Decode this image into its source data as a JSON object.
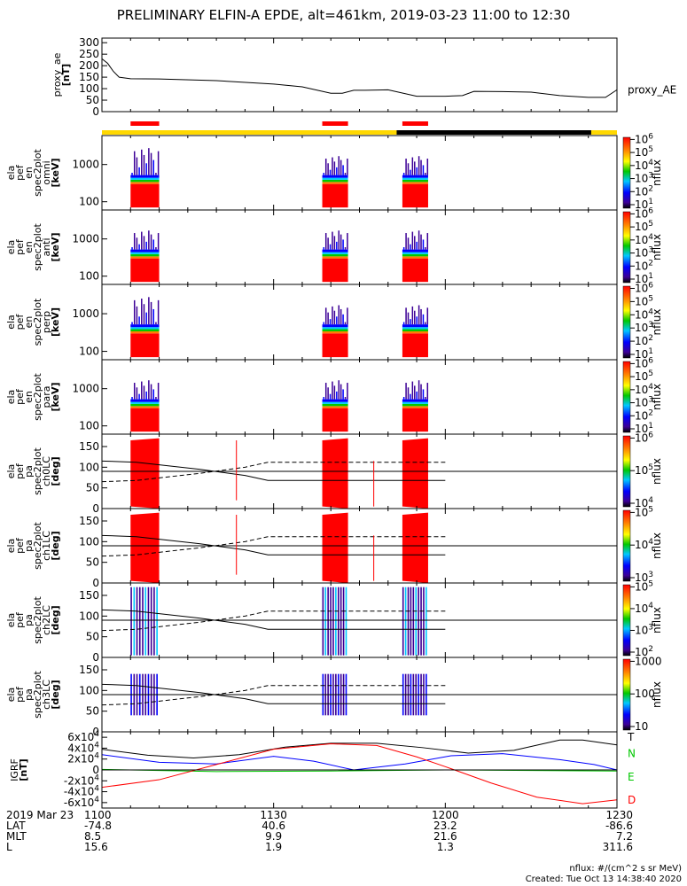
{
  "title": "PRELIMINARY ELFIN-A EPDE, alt=461km, 2019-03-23 11:00 to 12:30",
  "footer": {
    "units": "nflux: #/(cm^2 s sr MeV)",
    "created": "Created: Tue Oct 13 14:38:40 2020"
  },
  "colors": {
    "red": "#ff0000",
    "green": "#00c800",
    "blue": "#0000ff",
    "yellow": "#ffd800",
    "purple": "#3c0096",
    "cyan": "#00c8ff"
  },
  "chart_data": [
    {
      "type": "line",
      "panel": "proxy_ae",
      "ylabel": [
        "proxy_ae",
        "[nT]"
      ],
      "legend": "proxy_AE",
      "ylim": [
        0,
        320
      ],
      "yticks": [
        0,
        50,
        100,
        150,
        200,
        250,
        300
      ],
      "x_minutes": [
        0,
        1,
        2,
        3,
        5,
        10,
        20,
        30,
        35,
        40,
        42,
        44,
        46,
        50,
        55,
        60,
        63,
        65,
        70,
        75,
        80,
        85,
        88,
        90
      ],
      "values": [
        230,
        210,
        175,
        150,
        143,
        142,
        135,
        120,
        108,
        80,
        80,
        93,
        93,
        95,
        67,
        67,
        70,
        88,
        87,
        85,
        70,
        62,
        62,
        95
      ]
    },
    {
      "type": "bar",
      "panel": "status bars",
      "science_zones_min": [
        [
          5,
          10
        ],
        [
          38.5,
          43
        ],
        [
          52.5,
          57
        ]
      ],
      "track": [
        {
          "from": 0,
          "to": 51.5,
          "color": "yellow"
        },
        {
          "from": 51.5,
          "to": 85.5,
          "color": "black"
        },
        {
          "from": 85.5,
          "to": 90,
          "color": "yellow"
        }
      ]
    },
    {
      "type": "heatmap",
      "panel": "ela_pef_en_spec2plot_omni",
      "ylabel": [
        "ela",
        "pef",
        "en",
        "spec2plot",
        "omni",
        "[keV]"
      ],
      "yscale": "log",
      "ylim": [
        60,
        6000
      ],
      "yticks": [
        100,
        1000
      ],
      "zlabel": "nflux",
      "zticks": [
        "10^1",
        "10^2",
        "10^3",
        "10^4",
        "10^5",
        "10^6"
      ]
    },
    {
      "type": "heatmap",
      "panel": "ela_pef_en_spec2plot_anti",
      "ylabel": [
        "ela",
        "pef",
        "en",
        "spec2plot",
        "anti",
        "[keV]"
      ],
      "yscale": "log",
      "ylim": [
        60,
        6000
      ],
      "yticks": [
        100,
        1000
      ],
      "zlabel": "nflux",
      "zticks": [
        "10^1",
        "10^2",
        "10^3",
        "10^4",
        "10^5",
        "10^6"
      ]
    },
    {
      "type": "heatmap",
      "panel": "ela_pef_en_spec2plot_perp",
      "ylabel": [
        "ela",
        "pef",
        "en",
        "spec2plot",
        "perp",
        "[keV]"
      ],
      "yscale": "log",
      "ylim": [
        60,
        6000
      ],
      "yticks": [
        100,
        1000
      ],
      "zlabel": "nflux",
      "zticks": [
        "10^1",
        "10^2",
        "10^3",
        "10^4",
        "10^5",
        "10^6"
      ]
    },
    {
      "type": "heatmap",
      "panel": "ela_pef_en_spec2plot_para",
      "ylabel": [
        "ela",
        "pef",
        "en",
        "spec2plot",
        "para",
        "[keV]"
      ],
      "yscale": "log",
      "ylim": [
        60,
        6000
      ],
      "yticks": [
        100,
        1000
      ],
      "zlabel": "nflux",
      "zticks": [
        "10^1",
        "10^2",
        "10^3",
        "10^4",
        "10^5",
        "10^6"
      ]
    },
    {
      "type": "heatmap",
      "panel": "ela_pef_pa_spec2plot_ch0LC",
      "ylabel": [
        "ela",
        "pef",
        "pa",
        "spec2plot",
        "ch0LC",
        "[deg]"
      ],
      "ylim": [
        0,
        180
      ],
      "yticks": [
        0,
        50,
        100,
        150
      ],
      "zlabel": "nflux",
      "zticks": [
        "10^4",
        "10^5",
        "10^6"
      ]
    },
    {
      "type": "heatmap",
      "panel": "ela_pef_pa_spec2plot_ch1LC",
      "ylabel": [
        "ela",
        "pef",
        "pa",
        "spec2plot",
        "ch1LC",
        "[deg]"
      ],
      "ylim": [
        0,
        180
      ],
      "yticks": [
        0,
        50,
        100,
        150
      ],
      "zlabel": "nflux",
      "zticks": [
        "10^3",
        "10^4",
        "10^5"
      ]
    },
    {
      "type": "heatmap",
      "panel": "ela_pef_pa_spec2plot_ch2LC",
      "ylabel": [
        "ela",
        "pef",
        "pa",
        "spec2plot",
        "ch2LC",
        "[deg]"
      ],
      "ylim": [
        0,
        180
      ],
      "yticks": [
        0,
        50,
        100,
        150
      ],
      "zlabel": "nflux",
      "zticks": [
        "10^2",
        "10^3",
        "10^4",
        "10^5"
      ]
    },
    {
      "type": "heatmap",
      "panel": "ela_pef_pa_spec2plot_ch3LC",
      "ylabel": [
        "ela",
        "pef",
        "pa",
        "spec2plot",
        "ch3LC",
        "[deg]"
      ],
      "ylim": [
        0,
        180
      ],
      "yticks": [
        0,
        50,
        100,
        150
      ],
      "zlabel": "nflux",
      "zticks": [
        "10",
        "100",
        "1000"
      ]
    },
    {
      "type": "line",
      "panel": "IGRF",
      "ylabel": [
        "IGRF",
        "[nT]"
      ],
      "ylim": [
        -70000,
        70000
      ],
      "yticks": [
        "-6x10^4",
        "-4x10^4",
        "-2x10^4",
        "0",
        "2x10^4",
        "4x10^4",
        "6x10^4"
      ],
      "ytick_values": [
        -60000,
        -40000,
        -20000,
        0,
        20000,
        40000,
        60000
      ],
      "legend": [
        "T",
        "N",
        "E",
        "D"
      ],
      "series": [
        {
          "name": "T",
          "color": "black",
          "x_minutes": [
            0,
            8,
            16,
            24,
            32,
            40,
            48,
            56,
            64,
            72,
            80,
            84,
            90
          ],
          "values": [
            38000,
            27000,
            22000,
            28000,
            42000,
            49000,
            49000,
            41000,
            31000,
            36000,
            55000,
            55000,
            46000
          ]
        },
        {
          "name": "N",
          "color": "blue",
          "x_minutes": [
            0,
            10,
            20,
            30,
            37,
            44,
            53,
            61,
            70,
            80,
            86,
            90
          ],
          "values": [
            28000,
            14000,
            11000,
            25000,
            16000,
            0,
            11000,
            26000,
            30000,
            19000,
            10000,
            0
          ]
        },
        {
          "name": "E",
          "color": "green",
          "x_minutes": [
            0,
            20,
            40,
            60,
            90
          ],
          "values": [
            1000,
            -3000,
            -2000,
            0,
            -2000
          ]
        },
        {
          "name": "D",
          "color": "red",
          "x_minutes": [
            0,
            10,
            20,
            30,
            40,
            48,
            55,
            60,
            68,
            76,
            84,
            90
          ],
          "values": [
            -32000,
            -18000,
            10000,
            38000,
            48000,
            45000,
            24000,
            6000,
            -24000,
            -50000,
            -62000,
            -55000
          ]
        }
      ]
    },
    {
      "type": "table",
      "panel": "time axis",
      "date_label": "2019 Mar 23",
      "row_labels": [
        "LAT",
        "MLT",
        "L"
      ],
      "columns": [
        {
          "time": "1100",
          "x_minutes": 0,
          "LAT": "-74.8",
          "MLT": "8.5",
          "L": "15.6"
        },
        {
          "time": "1130",
          "x_minutes": 30,
          "LAT": "40.6",
          "MLT": "9.9",
          "L": "1.9"
        },
        {
          "time": "1200",
          "x_minutes": 60,
          "LAT": "23.2",
          "MLT": "21.6",
          "L": "1.3"
        },
        {
          "time": "1230",
          "x_minutes": 90,
          "LAT": "-86.6",
          "MLT": "7.2",
          "L": "311.6"
        }
      ]
    }
  ]
}
